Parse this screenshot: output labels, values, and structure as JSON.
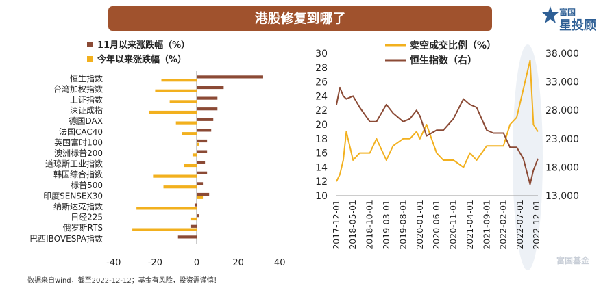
{
  "title": "港股修复到哪了",
  "brand": {
    "line1": "富国",
    "line2": "星投顾"
  },
  "watermark": "富国基金",
  "footer": "数据来自wind，截至2022-12-12；基金有风险，投资需谨慎！",
  "colors": {
    "brown": "#8b4a35",
    "gold": "#f2b01e",
    "title_bg": "#a0522d"
  },
  "chart_data": [
    {
      "type": "bar",
      "orientation": "horizontal",
      "categories": [
        "恒生指数",
        "台湾加权指数",
        "上证指数",
        "深证成指",
        "德国DAX",
        "法国CAC40",
        "英国富时100",
        "澳洲标普200",
        "道琼斯工业指数",
        "韩国综合指数",
        "标普500",
        "印度SENSEX30",
        "纳斯达克指数",
        "日经225",
        "俄罗斯RTS",
        "巴西IBOVESPA指数"
      ],
      "series": [
        {
          "name": "11月以来涨跌幅（%）",
          "color": "#8b4a35",
          "values": [
            32,
            13,
            10,
            10,
            8,
            7,
            5,
            5,
            4,
            5,
            3,
            6,
            -1,
            1,
            -3,
            -9
          ]
        },
        {
          "name": "今年以来涨跌幅（%）",
          "color": "#f2b01e",
          "values": [
            -17,
            -20,
            -13,
            -23,
            -10,
            -7,
            1,
            -2,
            -6,
            -21,
            -16,
            3,
            -29,
            -3,
            -31,
            0
          ]
        }
      ],
      "xticks": [
        "-40",
        "-20",
        "0",
        "20",
        "40"
      ],
      "xlim": [
        -40,
        40
      ],
      "legend": "top"
    },
    {
      "type": "line",
      "x_range": [
        "2017-12-01",
        "2022-12-12"
      ],
      "xticks": [
        "2017-12-01",
        "2018-05-01",
        "2018-10-01",
        "2019-03-01",
        "2019-08-01",
        "2020-01-01",
        "2020-06-01",
        "2020-11-01",
        "2021-04-01",
        "2021-09-01",
        "2022-02-01",
        "2022-07-01",
        "2022-12-01"
      ],
      "y_left": {
        "min": 10,
        "max": 30,
        "ticks": [
          "10",
          "12",
          "14",
          "16",
          "18",
          "20",
          "22",
          "24",
          "26",
          "28",
          "30"
        ]
      },
      "y_right": {
        "min": 13000,
        "max": 38000,
        "ticks": [
          "13,000",
          "18,000",
          "23,000",
          "28,000",
          "33,000",
          "38,000"
        ]
      },
      "series": [
        {
          "name": "卖空成交比例（%）",
          "axis": "left",
          "color": "#f2b01e",
          "x": [
            "2017-12-01",
            "2018-01-01",
            "2018-02-01",
            "2018-03-01",
            "2018-05-01",
            "2018-07-01",
            "2018-10-01",
            "2018-12-01",
            "2019-03-01",
            "2019-05-01",
            "2019-08-01",
            "2019-10-01",
            "2019-12-01",
            "2020-01-01",
            "2020-03-01",
            "2020-06-01",
            "2020-08-01",
            "2020-11-01",
            "2021-02-01",
            "2021-04-01",
            "2021-06-01",
            "2021-09-01",
            "2021-11-01",
            "2022-02-01",
            "2022-04-01",
            "2022-06-01",
            "2022-08-01",
            "2022-10-01",
            "2022-11-01",
            "2022-12-12"
          ],
          "y": [
            12,
            13,
            15,
            19,
            15,
            16,
            16,
            18,
            15,
            17,
            18,
            18,
            19,
            18,
            20,
            16,
            15,
            15,
            14,
            16,
            15,
            17,
            17,
            17,
            20,
            21,
            25,
            29,
            20,
            19
          ]
        },
        {
          "name": "恒生指数（右）",
          "axis": "right",
          "color": "#8b4a35",
          "x": [
            "2017-12-01",
            "2018-01-01",
            "2018-02-01",
            "2018-03-01",
            "2018-05-01",
            "2018-07-01",
            "2018-10-01",
            "2018-12-01",
            "2019-03-01",
            "2019-05-01",
            "2019-08-01",
            "2019-10-01",
            "2019-12-01",
            "2020-01-01",
            "2020-03-01",
            "2020-06-01",
            "2020-08-01",
            "2020-11-01",
            "2021-02-01",
            "2021-04-01",
            "2021-06-01",
            "2021-09-01",
            "2021-11-01",
            "2022-02-01",
            "2022-04-01",
            "2022-06-01",
            "2022-08-01",
            "2022-10-01",
            "2022-11-01",
            "2022-12-12"
          ],
          "y": [
            29000,
            32000,
            30500,
            30000,
            30500,
            28500,
            26000,
            26000,
            29000,
            27500,
            26000,
            26500,
            28000,
            27000,
            23500,
            24500,
            24500,
            26500,
            30000,
            29000,
            28500,
            24500,
            24000,
            24000,
            21500,
            21500,
            19500,
            15000,
            17500,
            19500
          ]
        }
      ],
      "legend": "top"
    }
  ]
}
